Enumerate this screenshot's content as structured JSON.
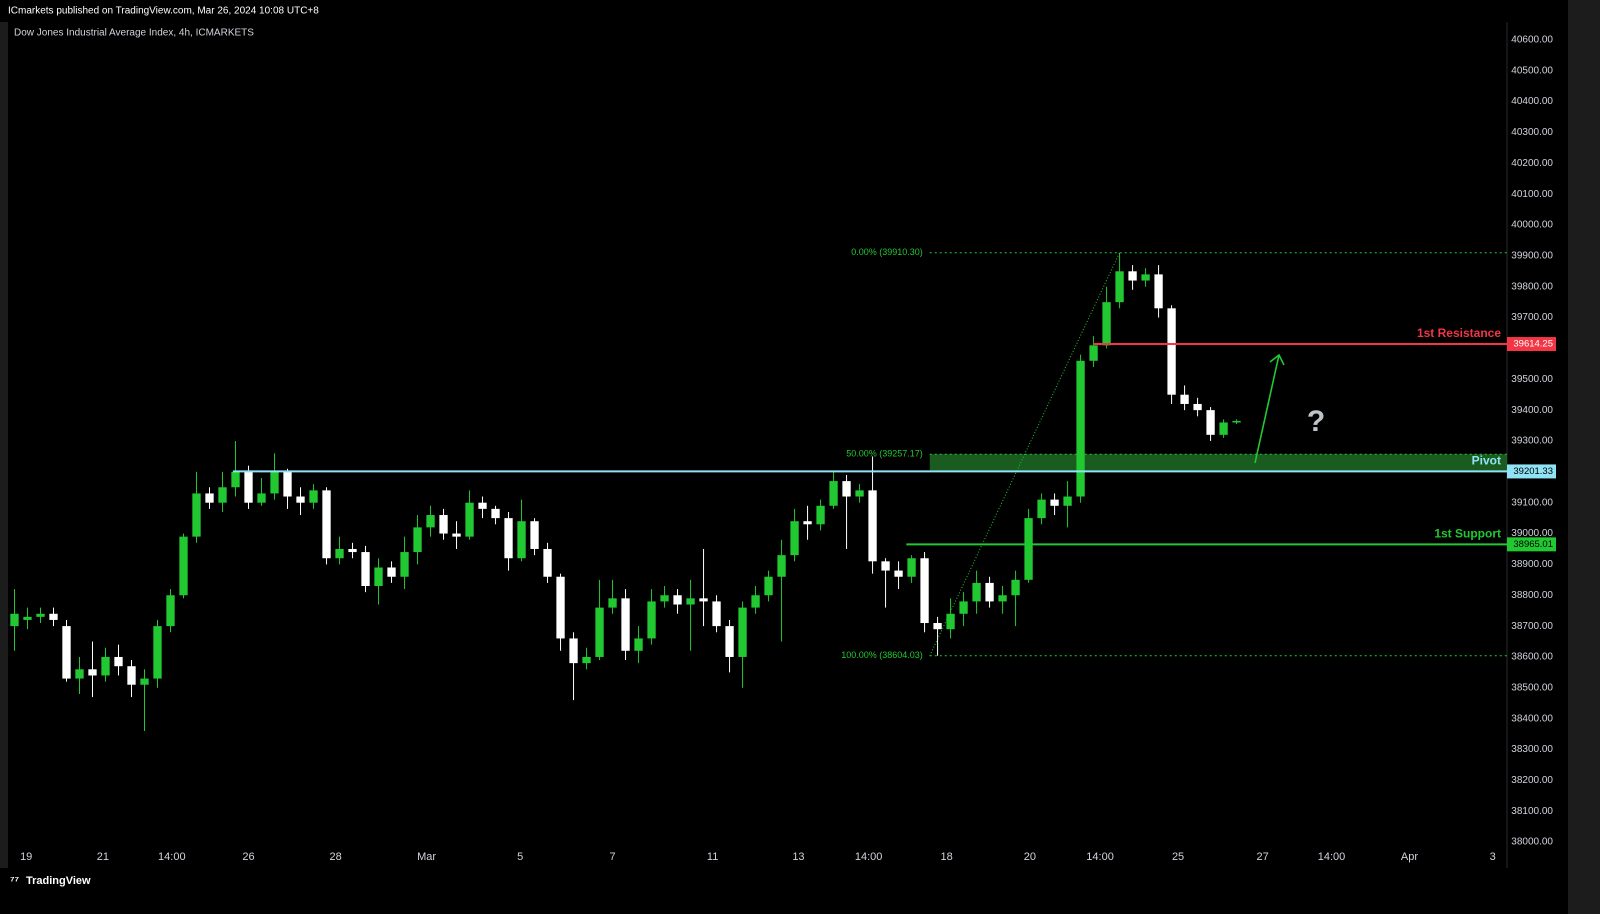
{
  "header": {
    "publisher": "ICmarkets published on TradingView.com, Mar 26, 2024 10:08 UTC+8",
    "footer": "TradingView"
  },
  "chart_data": {
    "type": "candlestick",
    "title": "Dow Jones Industrial Average Index, 4h, ICMARKETS",
    "up_color": "#22c832",
    "down_color": "#ffffff",
    "open": [
      38700,
      38720,
      38730,
      38740,
      38700,
      38530,
      38560,
      38540,
      38600,
      38570,
      38510,
      38530,
      38700,
      38800,
      38990,
      39130,
      39100,
      39150,
      39200,
      39100,
      39130,
      39200,
      39120,
      39100,
      39140,
      38920,
      38950,
      38940,
      38830,
      38890,
      38860,
      38940,
      39020,
      39060,
      39000,
      38990,
      39100,
      39080,
      39050,
      38920,
      39040,
      38950,
      38860,
      38660,
      38580,
      38600,
      38760,
      38790,
      38620,
      38660,
      38780,
      38800,
      38770,
      38790,
      38780,
      38700,
      38600,
      38760,
      38800,
      38860,
      38930,
      39040,
      39030,
      39090,
      39170,
      39120,
      39140,
      38910,
      38880,
      38860,
      38920,
      38710,
      38690,
      38740,
      38780,
      38840,
      38780,
      38800,
      38850,
      39050,
      39110,
      39090,
      39120,
      39560,
      39610,
      39750,
      39850,
      39820,
      39840,
      39730,
      39450,
      39420,
      39400,
      39320,
      39360
    ],
    "high": [
      38820,
      38760,
      38760,
      38760,
      38720,
      38600,
      38650,
      38630,
      38640,
      38590,
      38560,
      38720,
      38820,
      39000,
      39200,
      39150,
      39200,
      39300,
      39220,
      39180,
      39260,
      39210,
      39150,
      39160,
      39150,
      38990,
      38970,
      38960,
      38920,
      38910,
      38990,
      39060,
      39090,
      39080,
      39040,
      39140,
      39120,
      39090,
      39070,
      39110,
      39050,
      38970,
      38870,
      38680,
      38630,
      38850,
      38850,
      38820,
      38700,
      38820,
      38830,
      38820,
      38850,
      38950,
      38800,
      38720,
      38780,
      38830,
      38880,
      38980,
      39080,
      39090,
      39110,
      39200,
      39190,
      39160,
      39250,
      38920,
      38910,
      38930,
      38940,
      38730,
      38790,
      38810,
      38880,
      38860,
      38830,
      38880,
      39080,
      39130,
      39130,
      39170,
      39580,
      39640,
      39800,
      39910,
      39870,
      39860,
      39870,
      39740,
      39480,
      39440,
      39410,
      39370,
      39370
    ],
    "low": [
      38620,
      38690,
      38710,
      38700,
      38520,
      38480,
      38470,
      38520,
      38540,
      38470,
      38360,
      38500,
      38680,
      38790,
      38970,
      39080,
      39070,
      39120,
      39080,
      39090,
      39110,
      39080,
      39060,
      39080,
      38900,
      38900,
      38920,
      38810,
      38770,
      38840,
      38820,
      38900,
      38990,
      38980,
      38950,
      38980,
      39050,
      39030,
      38880,
      38910,
      38930,
      38840,
      38620,
      38460,
      38560,
      38590,
      38740,
      38590,
      38580,
      38640,
      38760,
      38740,
      38620,
      38700,
      38680,
      38550,
      38500,
      38740,
      38780,
      38650,
      38910,
      38980,
      39010,
      39080,
      38950,
      39100,
      38870,
      38760,
      38820,
      38840,
      38680,
      38604,
      38660,
      38700,
      38740,
      38760,
      38740,
      38700,
      38840,
      39030,
      39060,
      39020,
      39100,
      39540,
      39600,
      39730,
      39790,
      39800,
      39700,
      39420,
      39400,
      39380,
      39300,
      39310,
      39355
    ],
    "close": [
      38740,
      38730,
      38740,
      38720,
      38530,
      38560,
      38540,
      38600,
      38570,
      38510,
      38530,
      38700,
      38800,
      38990,
      39130,
      39100,
      39150,
      39200,
      39100,
      39130,
      39200,
      39120,
      39100,
      39140,
      38920,
      38950,
      38940,
      38830,
      38890,
      38860,
      38940,
      39020,
      39060,
      39000,
      38990,
      39100,
      39080,
      39050,
      38920,
      39040,
      38950,
      38860,
      38660,
      38580,
      38600,
      38760,
      38790,
      38620,
      38660,
      38780,
      38800,
      38770,
      38790,
      38780,
      38700,
      38600,
      38760,
      38800,
      38860,
      38930,
      39040,
      39030,
      39090,
      39170,
      39120,
      39140,
      38910,
      38880,
      38860,
      38920,
      38710,
      38690,
      38740,
      38780,
      38840,
      38780,
      38800,
      38850,
      39050,
      39110,
      39090,
      39120,
      39560,
      39610,
      39750,
      39850,
      39820,
      39840,
      39730,
      39450,
      39420,
      39400,
      39320,
      39360,
      39365
    ],
    "xlim": [
      0,
      115.3
    ],
    "xticks": [
      {
        "value": 1.4,
        "label": "19"
      },
      {
        "value": 7.3,
        "label": "21"
      },
      {
        "value": 12.6,
        "label": "14:00"
      },
      {
        "value": 18.5,
        "label": "26"
      },
      {
        "value": 25.2,
        "label": "28"
      },
      {
        "value": 32.2,
        "label": "Mar"
      },
      {
        "value": 39.4,
        "label": "5"
      },
      {
        "value": 46.5,
        "label": "7"
      },
      {
        "value": 54.2,
        "label": "11"
      },
      {
        "value": 60.8,
        "label": "13"
      },
      {
        "value": 66.2,
        "label": "14:00"
      },
      {
        "value": 72.2,
        "label": "18"
      },
      {
        "value": 78.6,
        "label": "20"
      },
      {
        "value": 84.0,
        "label": "14:00"
      },
      {
        "value": 90.0,
        "label": "25"
      },
      {
        "value": 96.5,
        "label": "27"
      },
      {
        "value": 101.8,
        "label": "14:00"
      },
      {
        "value": 107.8,
        "label": "Apr"
      },
      {
        "value": 114.2,
        "label": "3"
      }
    ],
    "ylim": [
      37916,
      40658
    ],
    "yticks": [
      {
        "value": 38000,
        "label": "38000.00"
      },
      {
        "value": 38100,
        "label": "38100.00"
      },
      {
        "value": 38200,
        "label": "38200.00"
      },
      {
        "value": 38300,
        "label": "38300.00"
      },
      {
        "value": 38400,
        "label": "38400.00"
      },
      {
        "value": 38500,
        "label": "38500.00"
      },
      {
        "value": 38600,
        "label": "38600.00"
      },
      {
        "value": 38700,
        "label": "38700.00"
      },
      {
        "value": 38800,
        "label": "38800.00"
      },
      {
        "value": 38900,
        "label": "38900.00"
      },
      {
        "value": 39000,
        "label": "39000.00"
      },
      {
        "value": 39100,
        "label": "39100.00"
      },
      {
        "value": 39200,
        "label": "39200.00"
      },
      {
        "value": 39300,
        "label": "39300.00"
      },
      {
        "value": 39400,
        "label": "39400.00"
      },
      {
        "value": 39500,
        "label": "39500.00"
      },
      {
        "value": 39600,
        "label": "39600.00"
      },
      {
        "value": 39700,
        "label": "39700.00"
      },
      {
        "value": 39800,
        "label": "39800.00"
      },
      {
        "value": 39900,
        "label": "39900.00"
      },
      {
        "value": 40000,
        "label": "40000.00"
      },
      {
        "value": 40100,
        "label": "40100.00"
      },
      {
        "value": 40200,
        "label": "40200.00"
      },
      {
        "value": 40300,
        "label": "40300.00"
      },
      {
        "value": 40400,
        "label": "40400.00"
      },
      {
        "value": 40500,
        "label": "40500.00"
      },
      {
        "value": 40600,
        "label": "40600.00"
      }
    ],
    "fib_start": 70.9,
    "fib_levels": [
      {
        "value": 39910.3,
        "label": "0.00% (39910.30)"
      },
      {
        "value": 39257.17,
        "label": "50.00% (39257.17)"
      },
      {
        "value": 38604.03,
        "label": "100.00% (38604.03)"
      }
    ],
    "levels": [
      {
        "name": "1st Resistance",
        "value": 39614.25,
        "label": "39614.25",
        "color": "#f23645",
        "start": 83.5
      },
      {
        "name": "Pivot",
        "value": 39201.33,
        "label": "39201.33",
        "color": "#8fe3f5",
        "start": 17.3
      },
      {
        "name": "1st Support",
        "value": 38965.01,
        "label": "38965.01",
        "color": "#22c832",
        "start": 69.1
      }
    ],
    "annotation": "?"
  }
}
